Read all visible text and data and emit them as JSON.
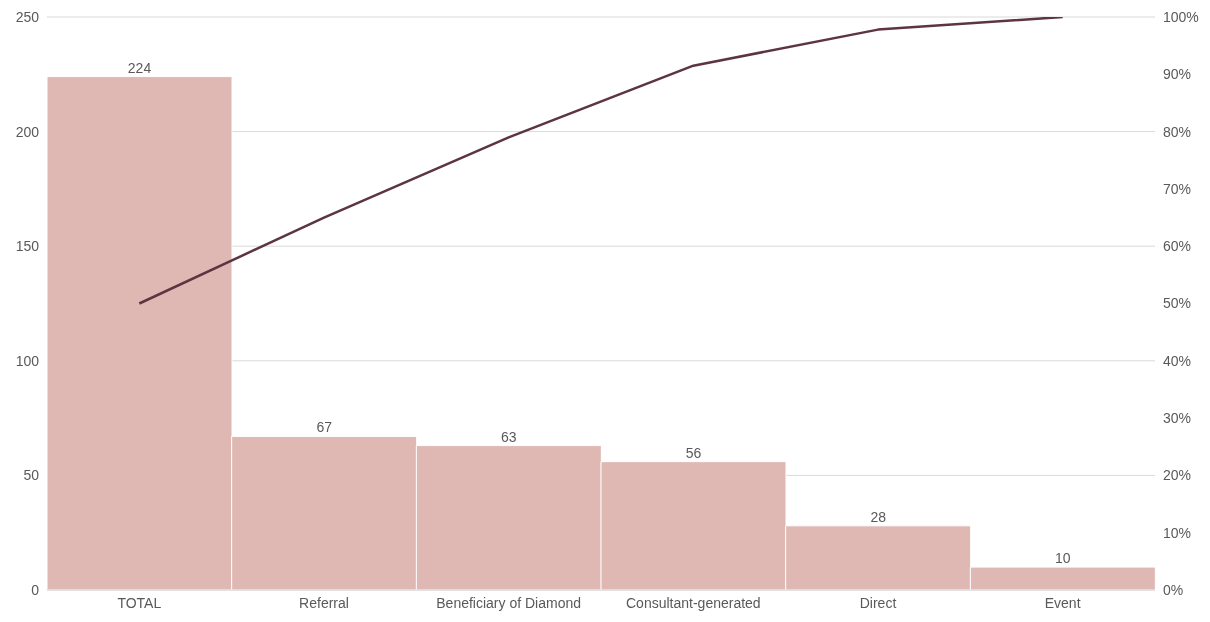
{
  "chart_data": {
    "type": "bar",
    "categories": [
      "TOTAL",
      "Referral",
      "Beneficiary of Diamond",
      "Consultant-generated",
      "Direct",
      "Event"
    ],
    "series": [
      {
        "color": "#dfb8b3",
        "values": [
          224,
          67,
          63,
          56,
          28,
          10
        ],
        "value_labels": [
          "224",
          "67",
          "63",
          "56",
          "28",
          "10"
        ]
      },
      {
        "type": "line",
        "axis": "y2",
        "color": "#5c3540",
        "values": [
          50,
          65,
          79,
          91.5,
          97.8,
          100
        ]
      }
    ],
    "ylim": [
      0,
      250
    ],
    "yticks": [
      0,
      50,
      100,
      150,
      200,
      250
    ],
    "y2lim": [
      0,
      100
    ],
    "y2ticks": [
      {
        "value": 0,
        "label": "0%"
      },
      {
        "value": 10,
        "label": "10%"
      },
      {
        "value": 20,
        "label": "20%"
      },
      {
        "value": 30,
        "label": "30%"
      },
      {
        "value": 40,
        "label": "40%"
      },
      {
        "value": 50,
        "label": "50%"
      },
      {
        "value": 60,
        "label": "60%"
      },
      {
        "value": 70,
        "label": "70%"
      },
      {
        "value": 80,
        "label": "80%"
      },
      {
        "value": 90,
        "label": "90%"
      },
      {
        "value": 100,
        "label": "100%"
      }
    ],
    "grid": "y",
    "legend": false,
    "marker": "none",
    "line_style": "solid"
  }
}
